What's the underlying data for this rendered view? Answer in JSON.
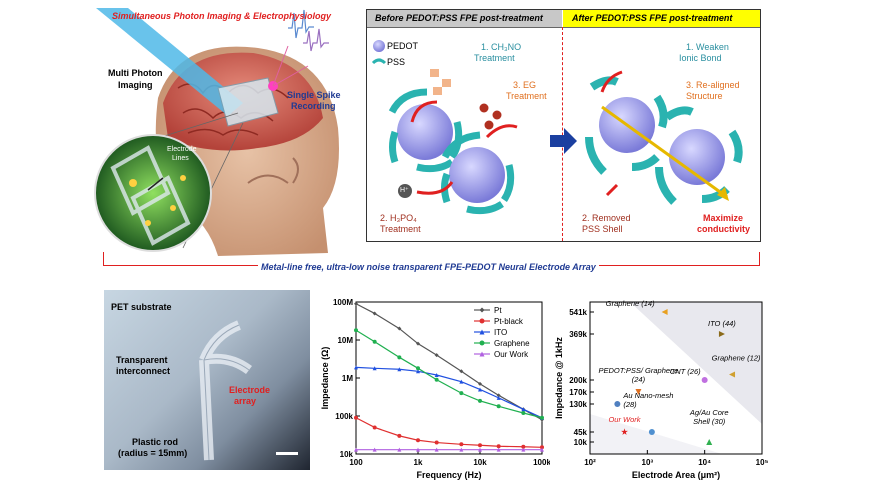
{
  "top_left": {
    "title": "Simultaneous Photon Imaging & Electrophysiology",
    "multi_photon": [
      "Multi Photon",
      "Imaging"
    ],
    "single_spike": [
      "Single Spike",
      "Recording"
    ],
    "electrode_lines": [
      "Electrode",
      "Lines"
    ]
  },
  "before_panel": {
    "header": "Before PEDOT:PSS FPE post-treatment",
    "legend_pedot": "PEDOT",
    "legend_pss": "PSS",
    "step1": [
      "1. CH₃NO",
      "Treatment"
    ],
    "step3": [
      "3. EG",
      "Treatment"
    ],
    "step2": [
      "2. H₃PO₄",
      "Treatment"
    ],
    "h_plus": "H⁺"
  },
  "after_panel": {
    "header": "After PEDOT:PSS FPE post-treatment",
    "step1": [
      "1. Weaken",
      "Ionic Bond"
    ],
    "step3": [
      "3. Re-aligned",
      "Structure"
    ],
    "step2": [
      "2. Removed",
      "PSS Shell"
    ],
    "max": [
      "Maximize",
      "conductivity"
    ]
  },
  "banner": "Metal-line free, ultra-low noise transparent FPE-PEDOT Neural Electrode Array",
  "photo": {
    "pet": "PET substrate",
    "interconnect": [
      "Transparent",
      "interconnect"
    ],
    "electrode": [
      "Electrode",
      "array"
    ],
    "rod": [
      "Plastic rod",
      "(radius = 15mm)"
    ]
  },
  "colors": {
    "red": "#e02020",
    "blue_text": "#1f3a93",
    "teal": "#2ab3b0",
    "yellow": "#ffff00"
  },
  "chart_data": [
    {
      "type": "line",
      "xlabel": "Frequency (Hz)",
      "ylabel": "Impedance (Ω)",
      "x_scale": "log",
      "y_scale": "log",
      "xlim": [
        100,
        100000
      ],
      "ylim": [
        10000,
        100000000
      ],
      "x_ticks": [
        "100",
        "1k",
        "10k",
        "100k"
      ],
      "y_ticks": [
        "100M",
        "10M",
        "1M",
        "100k",
        "10k"
      ],
      "x": [
        100,
        200,
        500,
        1000,
        2000,
        5000,
        10000,
        20000,
        50000,
        100000
      ],
      "series": [
        {
          "name": "Pt",
          "color": "#555555",
          "marker": "diamond",
          "values": [
            90000000,
            50000000,
            20000000,
            8000000,
            4000000,
            1500000,
            700000,
            350000,
            150000,
            80000
          ]
        },
        {
          "name": "Pt-black",
          "color": "#e03030",
          "marker": "circle",
          "values": [
            90000,
            50000,
            30000,
            23000,
            20000,
            18000,
            17000,
            16000,
            15500,
            15000
          ]
        },
        {
          "name": "ITO",
          "color": "#2050e0",
          "marker": "triangle",
          "values": [
            1900000,
            1800000,
            1700000,
            1500000,
            1200000,
            800000,
            500000,
            300000,
            150000,
            90000
          ]
        },
        {
          "name": "Graphene",
          "color": "#20b050",
          "marker": "circle",
          "values": [
            18000000,
            9000000,
            3500000,
            1800000,
            900000,
            400000,
            250000,
            180000,
            120000,
            90000
          ]
        },
        {
          "name": "Our Work",
          "color": "#b060e0",
          "marker": "triangle",
          "values": [
            13000,
            13000,
            13000,
            13000,
            13000,
            13000,
            13000,
            13000,
            13000,
            13000
          ]
        }
      ]
    },
    {
      "type": "scatter",
      "xlabel": "Electrode Area (μm²)",
      "ylabel": "Impedance @ 1kHz",
      "x_scale": "log",
      "xlim": [
        100,
        100000
      ],
      "x_ticks": [
        "10²",
        "10³",
        "10⁴",
        "10⁵"
      ],
      "y_ticks": [
        "541k",
        "369k",
        "200k",
        "170k",
        "130k",
        "45k",
        "10k"
      ],
      "points": [
        {
          "label": "Graphene (14)",
          "x": 2000,
          "y": 541000,
          "color": "#e8a020",
          "marker": "triangle-left"
        },
        {
          "label": "ITO (44)",
          "x": 20000,
          "y": 369000,
          "color": "#8b6a1a",
          "marker": "triangle-right"
        },
        {
          "label": "Graphene (12)",
          "x": 30000,
          "y": 220000,
          "color": "#d0a030",
          "marker": "triangle-left"
        },
        {
          "label": "CNT (26)",
          "x": 10000,
          "y": 200000,
          "color": "#c070e0",
          "marker": "circle"
        },
        {
          "label": "PEDOT:PSS/ Graphene (24)",
          "x": 700,
          "y": 170000,
          "color": "#e07020",
          "marker": "triangle-down"
        },
        {
          "label": "Au Nano-mesh (28)",
          "x": 300,
          "y": 130000,
          "color": "#5080c0",
          "marker": "circle"
        },
        {
          "label": "Ag/Au Core Shell (30)",
          "x": 12000,
          "y": 10000,
          "color": "#30b050",
          "marker": "triangle"
        },
        {
          "label": "Our Work",
          "x": 400,
          "y": 45000,
          "color": "#e02020",
          "marker": "star"
        },
        {
          "label": "",
          "x": 1200,
          "y": 45000,
          "color": "#5090d0",
          "marker": "circle"
        }
      ]
    }
  ]
}
